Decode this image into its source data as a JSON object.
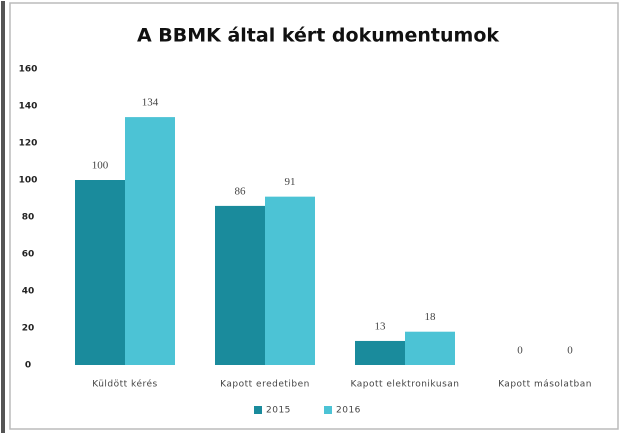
{
  "chart_data": {
    "type": "bar",
    "title": "A BBMK által kért dokumentumok",
    "categories": [
      "Küldött kérés",
      "Kapott eredetiben",
      "Kapott elektronikusan",
      "Kapott másolatban"
    ],
    "series": [
      {
        "name": "2015",
        "color": "#1a8b9c",
        "values": [
          100,
          86,
          13,
          0
        ]
      },
      {
        "name": "2016",
        "color": "#4cc3d5",
        "values": [
          134,
          91,
          18,
          0
        ]
      }
    ],
    "ylim": [
      0,
      160
    ],
    "yticks": [
      0,
      20,
      40,
      60,
      80,
      100,
      120,
      140,
      160
    ],
    "grid": false,
    "legend": "bottom"
  }
}
